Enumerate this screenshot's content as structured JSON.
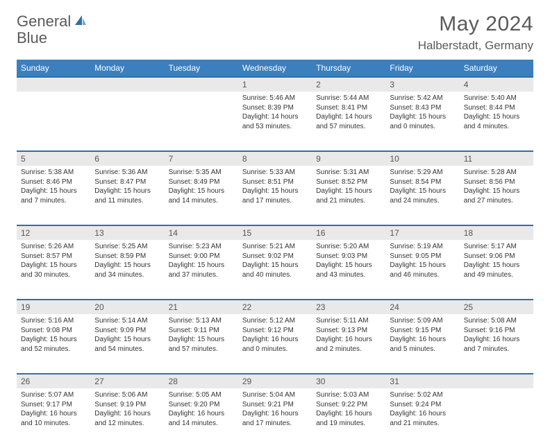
{
  "brand": {
    "name1": "General",
    "name2": "Blue"
  },
  "title": "May 2024",
  "location": "Halberstadt, Germany",
  "colors": {
    "header_bg": "#3b7fbf",
    "header_text": "#ffffff",
    "row_sep": "#2f6fa8",
    "daynum_bg": "#e9e9e9",
    "page_bg": "#ffffff",
    "text": "#333333",
    "title_text": "#5a5a5a",
    "logo_accent": "#2f6fa8"
  },
  "weekdays": [
    "Sunday",
    "Monday",
    "Tuesday",
    "Wednesday",
    "Thursday",
    "Friday",
    "Saturday"
  ],
  "weeks": [
    [
      null,
      null,
      null,
      {
        "n": "1",
        "sunrise": "Sunrise: 5:46 AM",
        "sunset": "Sunset: 8:39 PM",
        "day1": "Daylight: 14 hours",
        "day2": "and 53 minutes."
      },
      {
        "n": "2",
        "sunrise": "Sunrise: 5:44 AM",
        "sunset": "Sunset: 8:41 PM",
        "day1": "Daylight: 14 hours",
        "day2": "and 57 minutes."
      },
      {
        "n": "3",
        "sunrise": "Sunrise: 5:42 AM",
        "sunset": "Sunset: 8:43 PM",
        "day1": "Daylight: 15 hours",
        "day2": "and 0 minutes."
      },
      {
        "n": "4",
        "sunrise": "Sunrise: 5:40 AM",
        "sunset": "Sunset: 8:44 PM",
        "day1": "Daylight: 15 hours",
        "day2": "and 4 minutes."
      }
    ],
    [
      {
        "n": "5",
        "sunrise": "Sunrise: 5:38 AM",
        "sunset": "Sunset: 8:46 PM",
        "day1": "Daylight: 15 hours",
        "day2": "and 7 minutes."
      },
      {
        "n": "6",
        "sunrise": "Sunrise: 5:36 AM",
        "sunset": "Sunset: 8:47 PM",
        "day1": "Daylight: 15 hours",
        "day2": "and 11 minutes."
      },
      {
        "n": "7",
        "sunrise": "Sunrise: 5:35 AM",
        "sunset": "Sunset: 8:49 PM",
        "day1": "Daylight: 15 hours",
        "day2": "and 14 minutes."
      },
      {
        "n": "8",
        "sunrise": "Sunrise: 5:33 AM",
        "sunset": "Sunset: 8:51 PM",
        "day1": "Daylight: 15 hours",
        "day2": "and 17 minutes."
      },
      {
        "n": "9",
        "sunrise": "Sunrise: 5:31 AM",
        "sunset": "Sunset: 8:52 PM",
        "day1": "Daylight: 15 hours",
        "day2": "and 21 minutes."
      },
      {
        "n": "10",
        "sunrise": "Sunrise: 5:29 AM",
        "sunset": "Sunset: 8:54 PM",
        "day1": "Daylight: 15 hours",
        "day2": "and 24 minutes."
      },
      {
        "n": "11",
        "sunrise": "Sunrise: 5:28 AM",
        "sunset": "Sunset: 8:56 PM",
        "day1": "Daylight: 15 hours",
        "day2": "and 27 minutes."
      }
    ],
    [
      {
        "n": "12",
        "sunrise": "Sunrise: 5:26 AM",
        "sunset": "Sunset: 8:57 PM",
        "day1": "Daylight: 15 hours",
        "day2": "and 30 minutes."
      },
      {
        "n": "13",
        "sunrise": "Sunrise: 5:25 AM",
        "sunset": "Sunset: 8:59 PM",
        "day1": "Daylight: 15 hours",
        "day2": "and 34 minutes."
      },
      {
        "n": "14",
        "sunrise": "Sunrise: 5:23 AM",
        "sunset": "Sunset: 9:00 PM",
        "day1": "Daylight: 15 hours",
        "day2": "and 37 minutes."
      },
      {
        "n": "15",
        "sunrise": "Sunrise: 5:21 AM",
        "sunset": "Sunset: 9:02 PM",
        "day1": "Daylight: 15 hours",
        "day2": "and 40 minutes."
      },
      {
        "n": "16",
        "sunrise": "Sunrise: 5:20 AM",
        "sunset": "Sunset: 9:03 PM",
        "day1": "Daylight: 15 hours",
        "day2": "and 43 minutes."
      },
      {
        "n": "17",
        "sunrise": "Sunrise: 5:19 AM",
        "sunset": "Sunset: 9:05 PM",
        "day1": "Daylight: 15 hours",
        "day2": "and 46 minutes."
      },
      {
        "n": "18",
        "sunrise": "Sunrise: 5:17 AM",
        "sunset": "Sunset: 9:06 PM",
        "day1": "Daylight: 15 hours",
        "day2": "and 49 minutes."
      }
    ],
    [
      {
        "n": "19",
        "sunrise": "Sunrise: 5:16 AM",
        "sunset": "Sunset: 9:08 PM",
        "day1": "Daylight: 15 hours",
        "day2": "and 52 minutes."
      },
      {
        "n": "20",
        "sunrise": "Sunrise: 5:14 AM",
        "sunset": "Sunset: 9:09 PM",
        "day1": "Daylight: 15 hours",
        "day2": "and 54 minutes."
      },
      {
        "n": "21",
        "sunrise": "Sunrise: 5:13 AM",
        "sunset": "Sunset: 9:11 PM",
        "day1": "Daylight: 15 hours",
        "day2": "and 57 minutes."
      },
      {
        "n": "22",
        "sunrise": "Sunrise: 5:12 AM",
        "sunset": "Sunset: 9:12 PM",
        "day1": "Daylight: 16 hours",
        "day2": "and 0 minutes."
      },
      {
        "n": "23",
        "sunrise": "Sunrise: 5:11 AM",
        "sunset": "Sunset: 9:13 PM",
        "day1": "Daylight: 16 hours",
        "day2": "and 2 minutes."
      },
      {
        "n": "24",
        "sunrise": "Sunrise: 5:09 AM",
        "sunset": "Sunset: 9:15 PM",
        "day1": "Daylight: 16 hours",
        "day2": "and 5 minutes."
      },
      {
        "n": "25",
        "sunrise": "Sunrise: 5:08 AM",
        "sunset": "Sunset: 9:16 PM",
        "day1": "Daylight: 16 hours",
        "day2": "and 7 minutes."
      }
    ],
    [
      {
        "n": "26",
        "sunrise": "Sunrise: 5:07 AM",
        "sunset": "Sunset: 9:17 PM",
        "day1": "Daylight: 16 hours",
        "day2": "and 10 minutes."
      },
      {
        "n": "27",
        "sunrise": "Sunrise: 5:06 AM",
        "sunset": "Sunset: 9:19 PM",
        "day1": "Daylight: 16 hours",
        "day2": "and 12 minutes."
      },
      {
        "n": "28",
        "sunrise": "Sunrise: 5:05 AM",
        "sunset": "Sunset: 9:20 PM",
        "day1": "Daylight: 16 hours",
        "day2": "and 14 minutes."
      },
      {
        "n": "29",
        "sunrise": "Sunrise: 5:04 AM",
        "sunset": "Sunset: 9:21 PM",
        "day1": "Daylight: 16 hours",
        "day2": "and 17 minutes."
      },
      {
        "n": "30",
        "sunrise": "Sunrise: 5:03 AM",
        "sunset": "Sunset: 9:22 PM",
        "day1": "Daylight: 16 hours",
        "day2": "and 19 minutes."
      },
      {
        "n": "31",
        "sunrise": "Sunrise: 5:02 AM",
        "sunset": "Sunset: 9:24 PM",
        "day1": "Daylight: 16 hours",
        "day2": "and 21 minutes."
      },
      null
    ]
  ]
}
